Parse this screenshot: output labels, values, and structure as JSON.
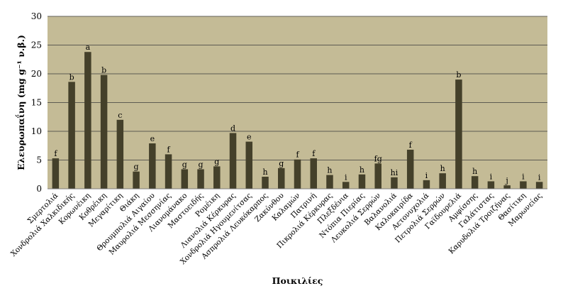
{
  "colors": {
    "plot_bg": "#c4bb96",
    "bar": "#44402a",
    "grid": "#3b3b3b",
    "axis": "#7f7f7f"
  },
  "chart_data": {
    "type": "bar",
    "xlabel": "Ποικιλίες",
    "ylabel": "Ελευρωπαΐνη (mg g⁻¹ ν.β.)",
    "ylim": [
      0,
      30
    ],
    "yticks": [
      0,
      5,
      10,
      15,
      20,
      25,
      30
    ],
    "grid": true,
    "categories": [
      "Σμερτολιά",
      "Χονδρολιά Χαλκιδικής",
      "Κορωνέικη",
      "Κοθρέικη",
      "Μεγαρίτικη",
      "Θιάκη",
      "Θρουμπολιά Αιγαίου",
      "Μαυρολιά Μεσσηνίας",
      "Λιανομάνακο",
      "Μαστοειδής",
      "Ρομέικη",
      "Λιανολιά Κέρκυρας",
      "Χονδρολιά Ηγουμενίτσας",
      "Ασπρολιά Λευκόκαρπος",
      "Ζακύνθου",
      "Καλαμών",
      "Πατρινή",
      "Πικρολιά Κέρκυρας",
      "Πλεξδένια",
      "Ντόπια Πιερίας",
      "Λευκολιά Σερρών",
      "Βαλανολιά",
      "Καλοκαιρίδα",
      "Αετονυχολιά",
      "Πετρολιά Σερρών",
      "Γαϊδουρελιά",
      "Αμφίσσης",
      "Γαλάτιστας",
      "Καρυδολιά Τροιζήνας",
      "Θασίτικη",
      "Μαρωνείας"
    ],
    "values": [
      5.3,
      18.6,
      23.8,
      19.8,
      12.0,
      3.0,
      7.9,
      6.0,
      3.4,
      3.4,
      3.9,
      9.7,
      8.2,
      2.1,
      3.6,
      5.1,
      5.3,
      2.4,
      1.2,
      2.5,
      4.4,
      2.0,
      6.8,
      1.5,
      2.7,
      19.0,
      2.2,
      1.3,
      0.6,
      1.3,
      1.2
    ],
    "significance_letters": [
      "f",
      "b",
      "a",
      "b",
      "c",
      "g",
      "e",
      "f",
      "g",
      "g",
      "g",
      "d",
      "e",
      "h",
      "g",
      "f",
      "f",
      "h",
      "i",
      "h",
      "fg",
      "hi",
      "f",
      "i",
      "h",
      "b",
      "h",
      "i",
      "j",
      "i",
      "i"
    ]
  }
}
